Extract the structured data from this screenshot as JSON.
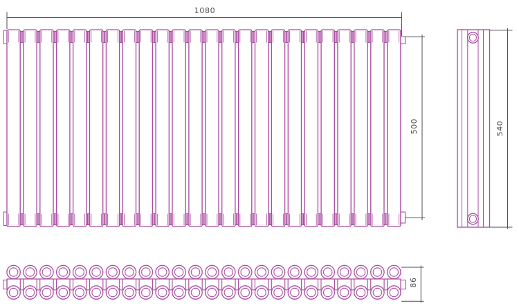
{
  "drawing": {
    "title": "tubular-radiator-three-view-technical-drawing",
    "colors": {
      "outline": "#aa4da2",
      "dimension_line": "#4d4d4d",
      "text": "#4d4d4d",
      "fill": "#ffffff"
    },
    "dimensions": {
      "overall_width": "1080",
      "tube_height": "500",
      "overall_height": "540",
      "depth": "86"
    },
    "front_view": {
      "tube_count": 24
    },
    "side_view": {
      "port_count": 2
    },
    "bottom_view": {
      "circles_per_row": 24,
      "row_count": 2
    }
  }
}
